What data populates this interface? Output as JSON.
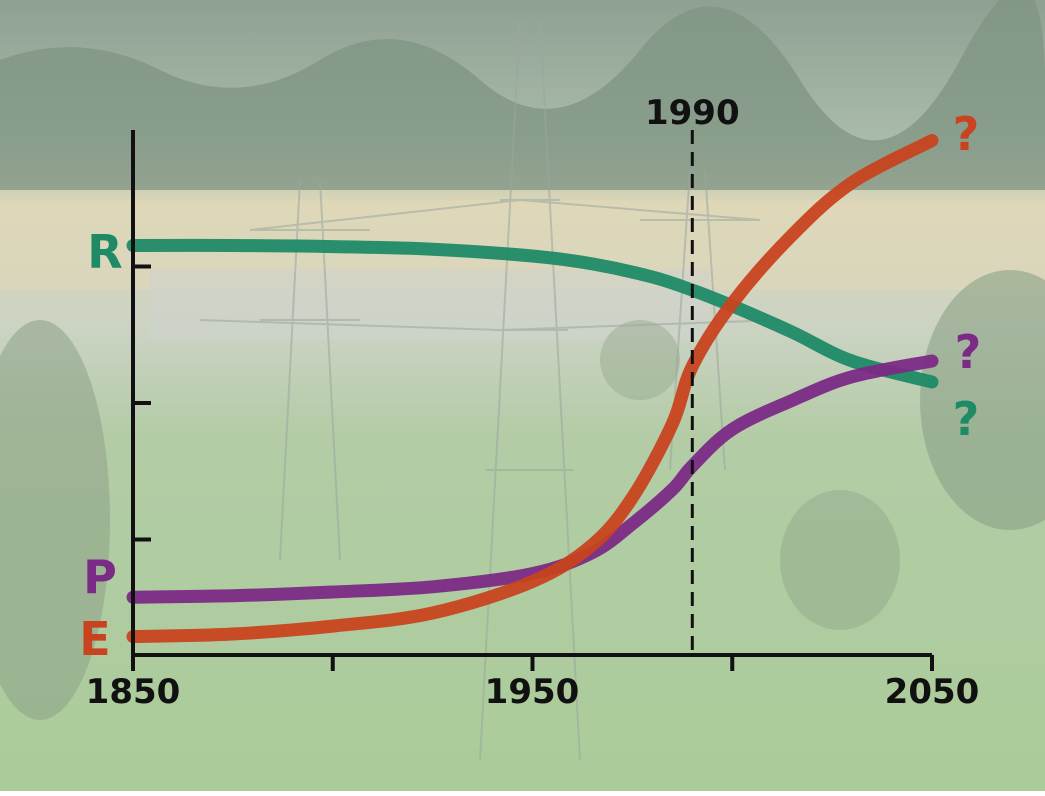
{
  "colors": {
    "R": "#1f8a66",
    "P": "#7b2a86",
    "E": "#c8431f",
    "axis": "#111111",
    "sky": "#aebfb0",
    "field": "#a8c79a"
  },
  "chart_data": {
    "type": "line",
    "xlim": [
      1850,
      2050
    ],
    "x_ticks": [
      "1850",
      "1950",
      "2050"
    ],
    "x_minor_ticks": [
      1900,
      2000
    ],
    "ylim": [
      0,
      100
    ],
    "y_minor_ticks": [
      22,
      48,
      74
    ],
    "reference_line": {
      "x": 1990,
      "label": "1990",
      "style": "dashed"
    },
    "series": [
      {
        "name": "R",
        "end_marker": "?",
        "x": [
          1850,
          1875,
          1900,
          1925,
          1950,
          1965,
          1980,
          1990,
          2000,
          2015,
          2030,
          2050
        ],
        "y": [
          78,
          78,
          77.8,
          77.3,
          76,
          74.5,
          72,
          69.5,
          66.5,
          61.5,
          56,
          52
        ]
      },
      {
        "name": "P",
        "end_marker": "?",
        "x": [
          1850,
          1875,
          1900,
          1925,
          1950,
          1965,
          1975,
          1985,
          1990,
          2000,
          2015,
          2030,
          2050
        ],
        "y": [
          11,
          11.3,
          12,
          13,
          15.5,
          19.5,
          25,
          31.5,
          36,
          43,
          48.5,
          53,
          56
        ]
      },
      {
        "name": "E",
        "end_marker": "?",
        "x": [
          1850,
          1875,
          1900,
          1925,
          1950,
          1965,
          1975,
          1985,
          1990,
          2000,
          2015,
          2030,
          2050
        ],
        "y": [
          3.5,
          4,
          5.5,
          8,
          14,
          21,
          30,
          44,
          55,
          67,
          80,
          90,
          98
        ]
      }
    ]
  }
}
